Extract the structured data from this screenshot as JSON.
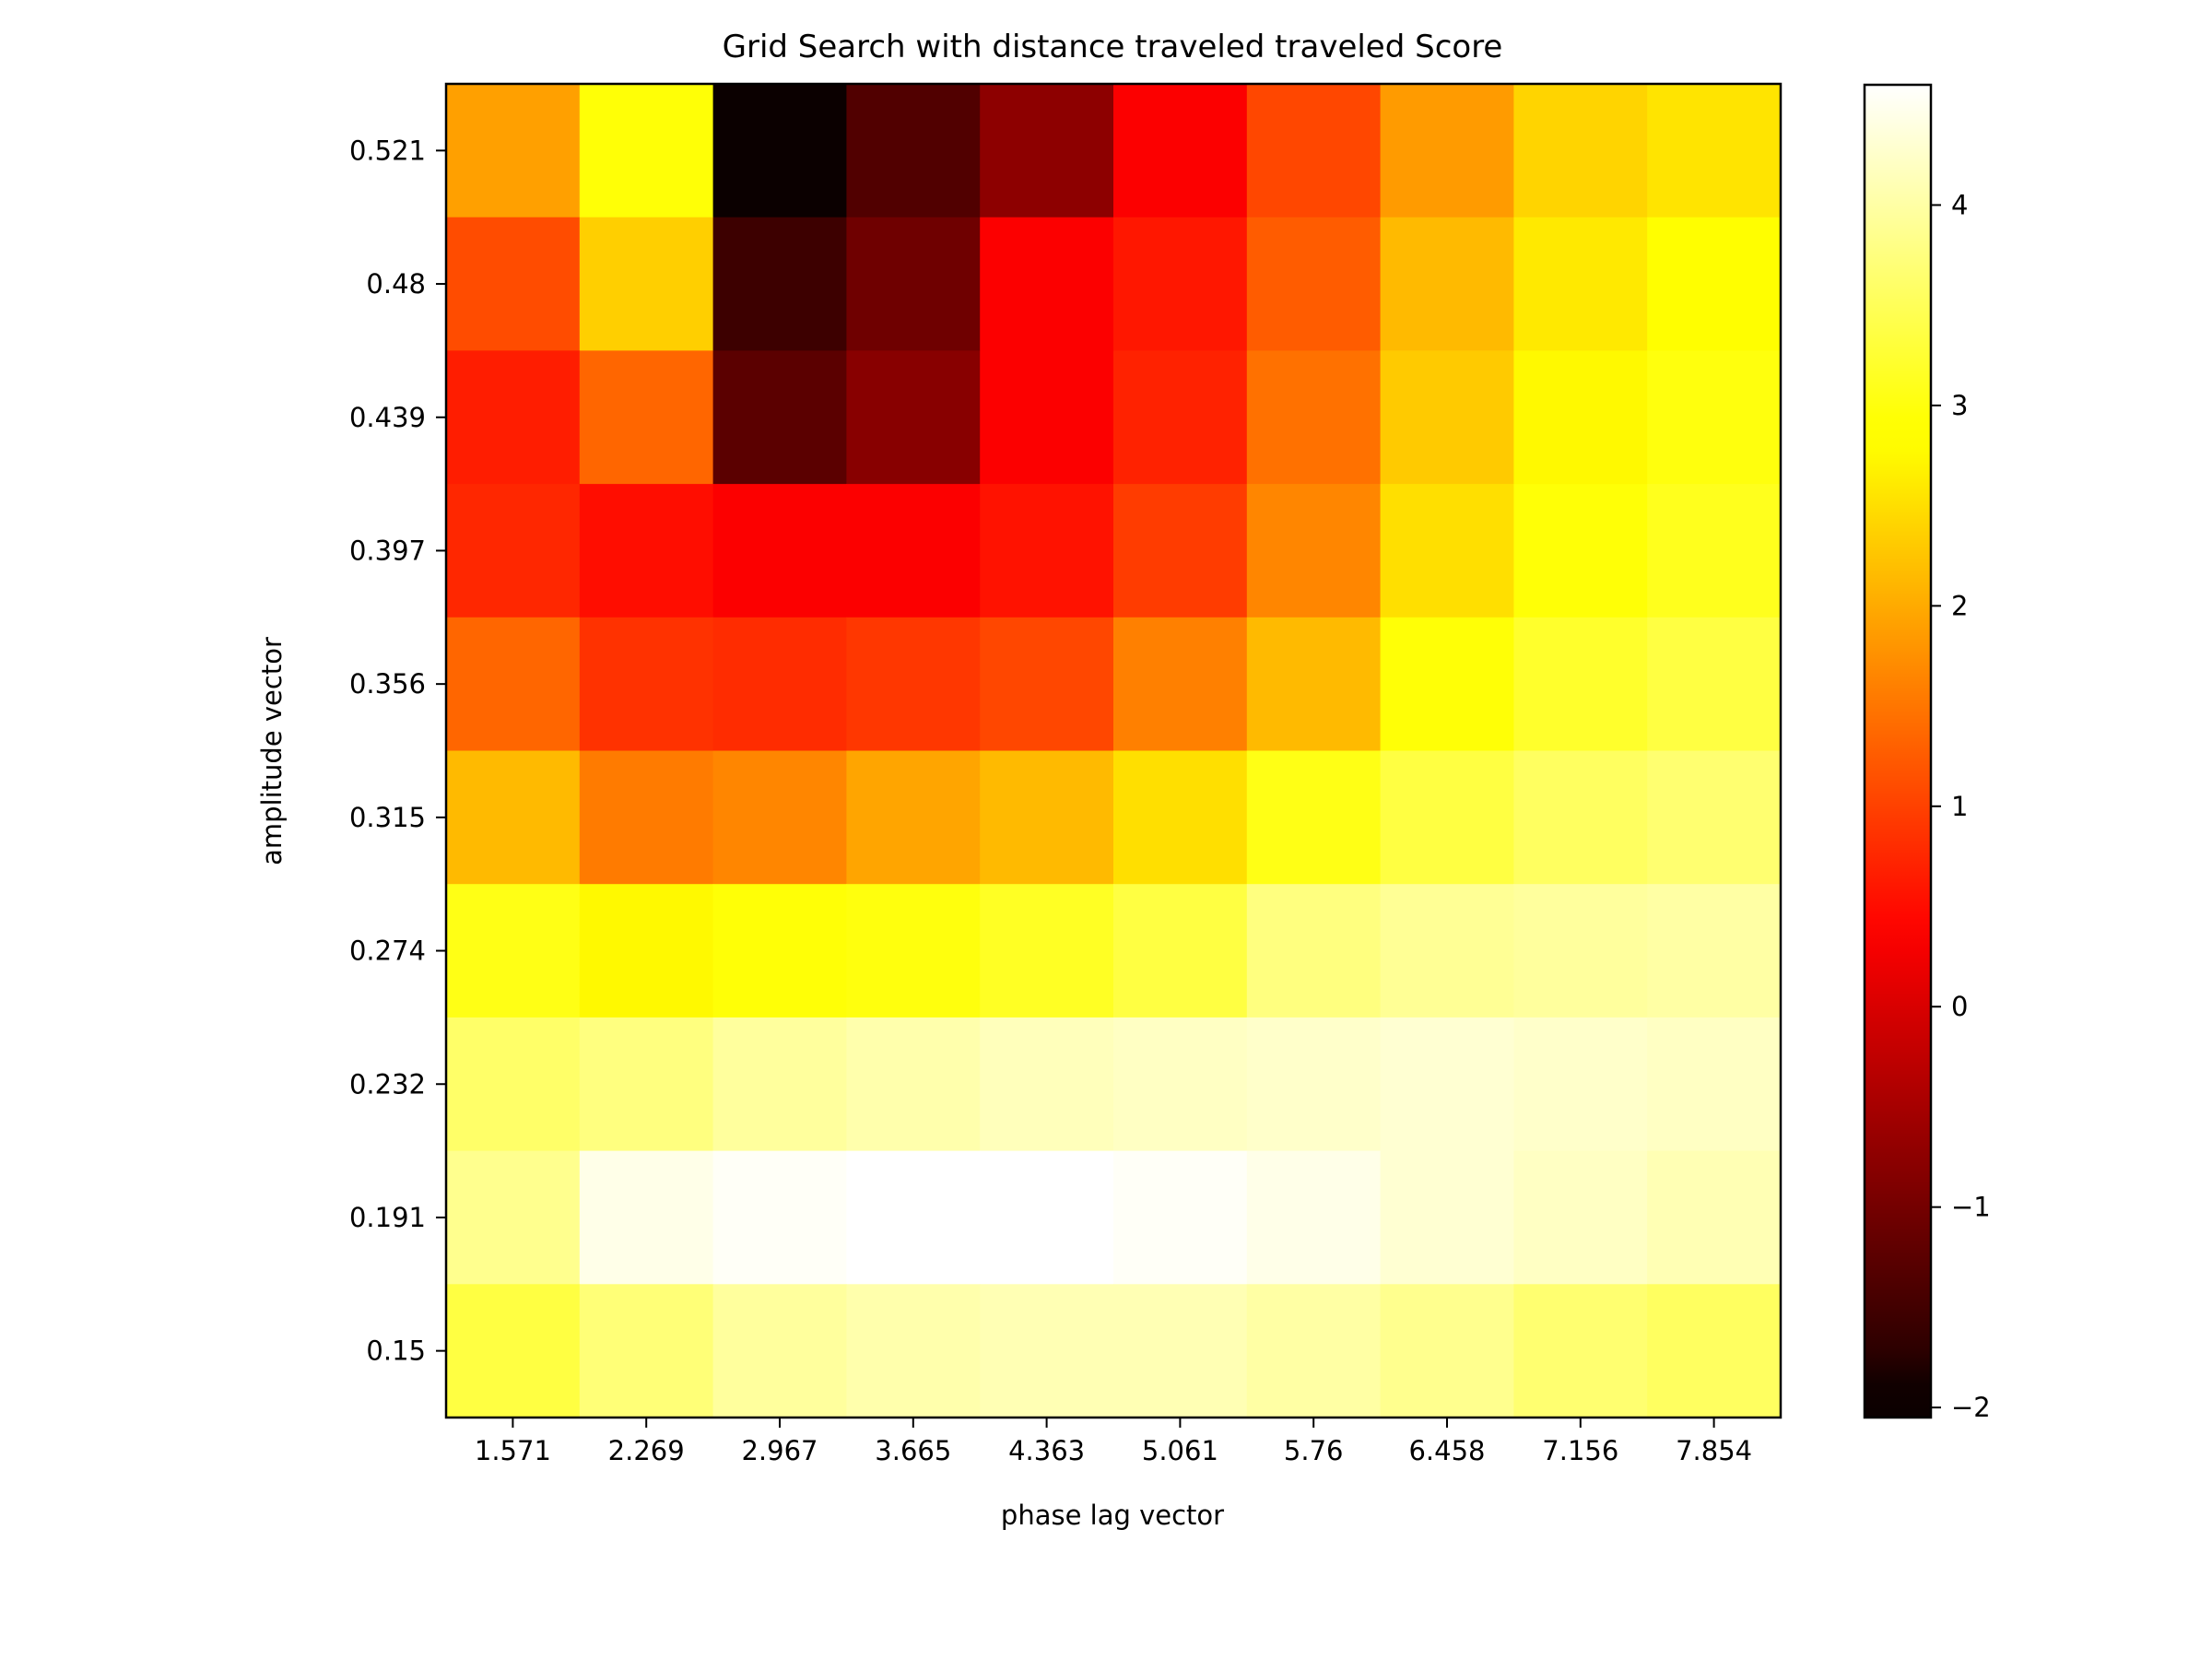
{
  "chart_data": {
    "type": "heatmap",
    "title": "Grid Search with distance traveled traveled Score",
    "xlabel": "phase lag vector",
    "ylabel": "amplitude vector",
    "x_categories": [
      "1.571",
      "2.269",
      "2.967",
      "3.665",
      "4.363",
      "5.061",
      "5.76",
      "6.458",
      "7.156",
      "7.854"
    ],
    "y_categories": [
      "0.521",
      "0.48",
      "0.439",
      "0.397",
      "0.356",
      "0.315",
      "0.274",
      "0.232",
      "0.191",
      "0.15"
    ],
    "values": [
      [
        1.9,
        2.95,
        -2.05,
        -1.35,
        -0.75,
        0.35,
        1.05,
        1.85,
        2.4,
        2.55
      ],
      [
        1.1,
        2.35,
        -1.55,
        -1.05,
        0.35,
        0.6,
        1.25,
        2.15,
        2.6,
        2.8
      ],
      [
        0.65,
        1.35,
        -1.25,
        -0.8,
        0.35,
        0.7,
        1.45,
        2.3,
        2.75,
        3.0
      ],
      [
        0.75,
        0.5,
        0.35,
        0.35,
        0.55,
        0.95,
        1.65,
        2.5,
        2.95,
        3.1
      ],
      [
        1.35,
        0.85,
        0.8,
        0.9,
        1.05,
        1.6,
        2.15,
        2.95,
        3.2,
        3.35
      ],
      [
        2.15,
        1.55,
        1.65,
        1.95,
        2.15,
        2.5,
        3.05,
        3.35,
        3.55,
        3.65
      ],
      [
        3.05,
        2.75,
        2.95,
        3.0,
        3.15,
        3.35,
        3.75,
        3.9,
        3.95,
        4.0
      ],
      [
        3.6,
        3.75,
        3.95,
        4.05,
        4.15,
        4.2,
        4.25,
        4.3,
        4.25,
        4.2
      ],
      [
        3.85,
        4.45,
        4.55,
        4.6,
        4.6,
        4.55,
        4.45,
        4.3,
        4.2,
        4.1
      ],
      [
        3.35,
        3.7,
        3.95,
        4.05,
        4.1,
        4.1,
        4.0,
        3.85,
        3.65,
        3.55
      ]
    ],
    "colormap": "hot",
    "colorbar": {
      "vmin": -2.05,
      "vmax": 4.6,
      "ticks": [
        -2,
        -1,
        0,
        1,
        2,
        3,
        4
      ],
      "tick_labels": [
        "−2",
        "−1",
        "0",
        "1",
        "2",
        "3",
        "4"
      ]
    }
  }
}
